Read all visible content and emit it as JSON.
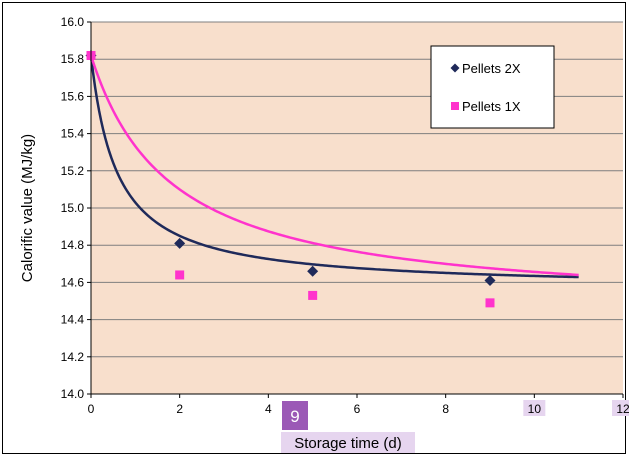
{
  "chart_data": {
    "type": "line",
    "title": "",
    "xlabel": "Storage time (d)",
    "ylabel": "Calorific value (MJ/kg)",
    "xlim": [
      0,
      12
    ],
    "ylim": [
      14.0,
      16.0
    ],
    "x_ticks": [
      0,
      2,
      4,
      6,
      8,
      10,
      12
    ],
    "y_ticks": [
      14.0,
      14.2,
      14.4,
      14.6,
      14.8,
      15.0,
      15.2,
      15.4,
      15.6,
      15.8,
      16.0
    ],
    "y_tick_labels": [
      "14.0",
      "14.2",
      "14.4",
      "14.6",
      "14.8",
      "15.0",
      "15.2",
      "15.4",
      "15.6",
      "15.8",
      "16.0"
    ],
    "grid": "horizontal",
    "legend_position": "top-right",
    "plot_background": "#f8dfcc",
    "series": [
      {
        "name": "Pellets 2X",
        "color": "#1f2a5a",
        "marker": "diamond",
        "points": [
          {
            "x": 0,
            "y": 15.82
          },
          {
            "x": 2,
            "y": 14.81
          },
          {
            "x": 5,
            "y": 14.66
          },
          {
            "x": 9,
            "y": 14.61
          }
        ],
        "fit": {
          "plateau": 14.565,
          "amplitude": 1.255,
          "rate": 1.7,
          "x_end": 11
        }
      },
      {
        "name": "Pellets 1X",
        "color": "#ff33cc",
        "marker": "square",
        "points": [
          {
            "x": 0,
            "y": 15.82
          },
          {
            "x": 2,
            "y": 14.64
          },
          {
            "x": 5,
            "y": 14.53
          },
          {
            "x": 9,
            "y": 14.49
          }
        ],
        "fit": {
          "plateau": 14.445,
          "amplitude": 1.375,
          "rate": 0.55,
          "x_end": 11
        }
      }
    ]
  },
  "overlay": {
    "page_badge": "9",
    "badge_color": "#9b59b6",
    "highlight_color": "#e6d5ef"
  }
}
